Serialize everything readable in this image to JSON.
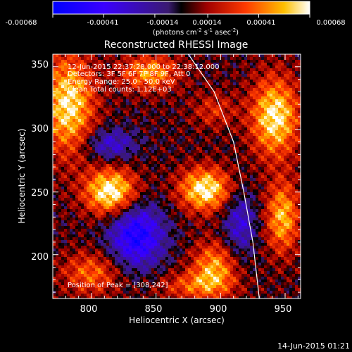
{
  "chart_data": {
    "type": "heatmap",
    "title": "Reconstructed RHESSI Image",
    "xlabel": "Heliocentric X (arcsec)",
    "ylabel": "Heliocentric Y (arcsec)",
    "xlim": [
      770,
      962
    ],
    "ylim": [
      165,
      360
    ],
    "x_ticks": [
      800,
      850,
      900,
      950
    ],
    "y_ticks": [
      200,
      250,
      300,
      350
    ],
    "colorbar": {
      "unit_line1": "(photons cm",
      "exp_a": "-2",
      "unit_mid": " s",
      "exp_b": "-1",
      "unit_mid2": " asec",
      "exp_c": "-2",
      "unit_end": ")",
      "range": [
        -0.00068,
        0.00068
      ],
      "tick_labels": [
        "-0.00068",
        "-0.00041",
        "-0.00014",
        "0.00014",
        "0.00041",
        "0.00068"
      ]
    },
    "annotations": {
      "time_range": "12-Jun-2015 22:37:28.000 to 22:38:12.000",
      "detectors": "Detectors: 3F 5F 6F 7F 8F 9F, Att 0",
      "energy": "Energy Range: 25.0 - 50.0 keV",
      "clean": "Clean    Total counts: 1.12E+03",
      "peak": "Position of Peak = [308,242]"
    },
    "peak": [
      308,
      242
    ],
    "sources": [
      {
        "x": 815,
        "y": 250,
        "amp": 0.00068,
        "sx": 14,
        "sy": 13
      },
      {
        "x": 888,
        "y": 252,
        "amp": 0.00064,
        "sx": 14,
        "sy": 12
      },
      {
        "x": 782,
        "y": 320,
        "amp": 0.0006,
        "sx": 14,
        "sy": 28
      },
      {
        "x": 845,
        "y": 345,
        "amp": 0.00045,
        "sx": 16,
        "sy": 10
      },
      {
        "x": 895,
        "y": 315,
        "amp": 0.00022,
        "sx": 12,
        "sy": 10
      },
      {
        "x": 942,
        "y": 310,
        "amp": 0.00062,
        "sx": 13,
        "sy": 22
      },
      {
        "x": 948,
        "y": 230,
        "amp": 0.0005,
        "sx": 9,
        "sy": 20
      },
      {
        "x": 895,
        "y": 190,
        "amp": 0.00045,
        "sx": 12,
        "sy": 14
      },
      {
        "x": 800,
        "y": 185,
        "amp": 0.00035,
        "sx": 16,
        "sy": 12
      },
      {
        "x": 835,
        "y": 215,
        "amp": -0.0006,
        "sx": 15,
        "sy": 18
      },
      {
        "x": 815,
        "y": 288,
        "amp": -0.00035,
        "sx": 14,
        "sy": 9
      },
      {
        "x": 915,
        "y": 225,
        "amp": -0.00035,
        "sx": 9,
        "sy": 18
      },
      {
        "x": 880,
        "y": 175,
        "amp": 0.0003,
        "sx": 20,
        "sy": 8
      }
    ],
    "limb": [
      [
        875,
        360
      ],
      [
        895,
        330
      ],
      [
        910,
        290
      ],
      [
        918,
        250
      ],
      [
        925,
        210
      ],
      [
        930,
        165
      ]
    ]
  },
  "footer": {
    "timestamp": "14-Jun-2015 01:21"
  }
}
